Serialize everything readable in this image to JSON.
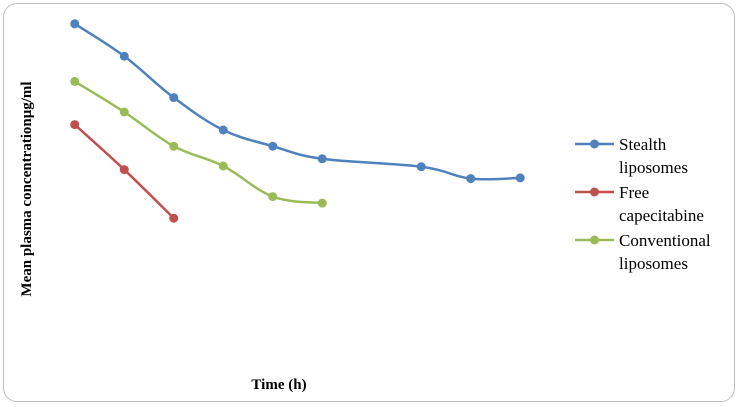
{
  "chart_data": {
    "type": "line",
    "title": "",
    "xlabel": "Time (h)",
    "ylabel": "Mean plasma concentrationμg/ml",
    "x_ticks_shown": false,
    "y_ticks_shown": false,
    "grid": false,
    "legend_position": "right",
    "series": [
      {
        "name_lines": [
          "Stealth",
          "liposomes"
        ],
        "color": "#4f81bd",
        "x": [
          1,
          2,
          3,
          4,
          5,
          6,
          8,
          9,
          10
        ],
        "y": [
          92,
          83,
          71.5,
          62.5,
          58,
          54.5,
          52.3,
          49,
          49.2
        ]
      },
      {
        "name_lines": [
          "Free",
          "capecitabine"
        ],
        "color": "#c0504d",
        "x": [
          1,
          2,
          3
        ],
        "y": [
          64,
          51.5,
          38
        ]
      },
      {
        "name_lines": [
          "Conventional",
          "liposomes"
        ],
        "color": "#9bbb59",
        "x": [
          1,
          2,
          3,
          4,
          5,
          6
        ],
        "y": [
          76,
          67.5,
          58,
          52.5,
          44,
          42.2
        ]
      }
    ]
  }
}
